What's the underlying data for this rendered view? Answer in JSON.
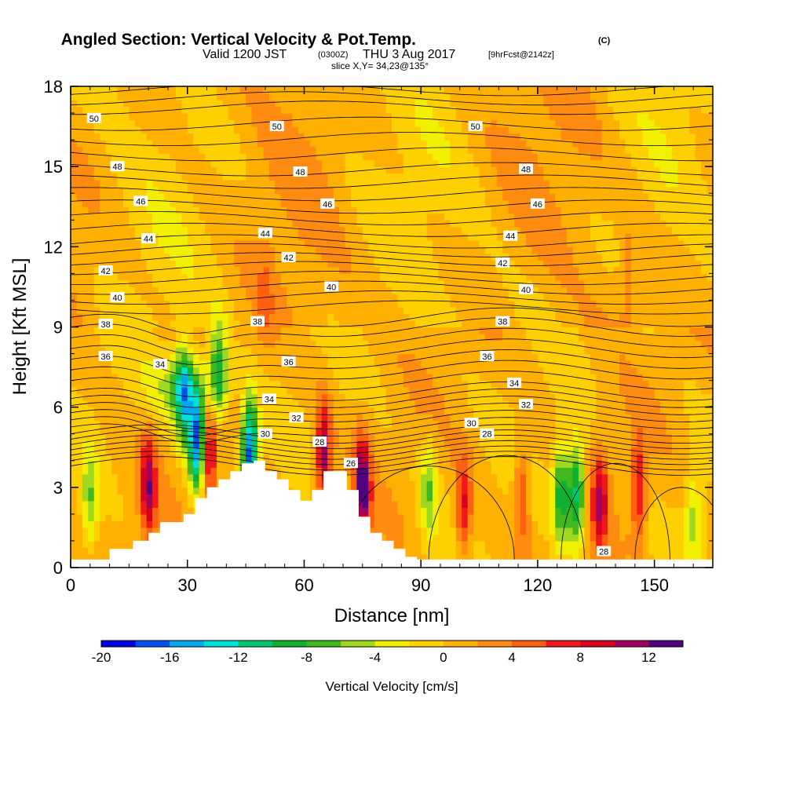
{
  "title": {
    "main": "Angled Section: Vertical Velocity & Pot.Temp.",
    "main_suffix": "(C)",
    "valid_prefix": "Valid 1200 JST",
    "valid_utc": "(0300Z)",
    "valid_date": "THU 3 Aug 2017",
    "forecast": "[9hrFcst@2142z]",
    "slice": "slice X,Y= 34,23@135°"
  },
  "colorbar": {
    "title": "Vertical Velocity [cm/s]",
    "tick_labels": [
      "-20",
      "-16",
      "-12",
      "-8",
      "-4",
      "0",
      "4",
      "8",
      "12"
    ],
    "colors": [
      "#0000dd",
      "#0050f0",
      "#00a8f0",
      "#00e0d8",
      "#00c870",
      "#10b030",
      "#40b820",
      "#a0d820",
      "#f0f000",
      "#ffd000",
      "#ffb000",
      "#ff8c10",
      "#ff6010",
      "#f01818",
      "#d80020",
      "#a00060",
      "#500080"
    ]
  },
  "chart_data": {
    "type": "heatmap",
    "title": "Angled Section: Vertical Velocity & Pot.Temp. (C)",
    "xlabel": "Distance [nm]",
    "ylabel": "Height [Kft MSL]",
    "xlim": [
      0,
      165
    ],
    "ylim": [
      0,
      18
    ],
    "x_ticks": [
      0,
      30,
      60,
      90,
      120,
      150
    ],
    "y_ticks": [
      0,
      3,
      6,
      9,
      12,
      15,
      18
    ],
    "colorbar_range": [
      -20,
      14
    ],
    "colorbar_step": 2,
    "terrain": {
      "x": [
        0,
        10,
        10,
        16,
        16,
        20,
        20,
        23,
        23,
        29,
        29,
        32,
        32,
        35,
        35,
        38,
        38,
        41,
        41,
        44,
        44,
        47,
        47,
        50,
        50,
        53,
        53,
        56,
        56,
        59,
        59,
        62,
        62,
        65,
        65,
        71,
        71,
        74,
        74,
        77,
        77,
        80,
        80,
        83,
        83,
        86,
        86,
        89,
        89,
        165
      ],
      "y": [
        0.3,
        0.3,
        0.7,
        0.7,
        1.0,
        1.0,
        1.3,
        1.3,
        1.7,
        1.7,
        2.0,
        2.0,
        2.6,
        2.6,
        3.0,
        3.0,
        3.3,
        3.3,
        3.6,
        3.6,
        3.9,
        3.9,
        4.0,
        4.0,
        3.6,
        3.6,
        3.3,
        3.3,
        2.9,
        2.9,
        2.5,
        2.5,
        2.9,
        2.9,
        3.6,
        3.6,
        2.9,
        2.9,
        1.9,
        1.9,
        1.3,
        1.3,
        1.0,
        1.0,
        0.7,
        0.7,
        0.4,
        0.4,
        0.3,
        0.3
      ]
    },
    "theta_contours": [
      {
        "label": "50",
        "level_kft": 16.6
      },
      {
        "label": "48",
        "level_kft": 14.9
      },
      {
        "label": "46",
        "level_kft": 13.5
      },
      {
        "label": "44",
        "level_kft": 12.2
      },
      {
        "label": "42",
        "level_kft": 11.2
      },
      {
        "label": "40",
        "level_kft": 10.1
      },
      {
        "label": "38",
        "level_kft": 9.0
      },
      {
        "label": "36",
        "level_kft": 7.8
      },
      {
        "label": "34",
        "level_kft": 6.6
      },
      {
        "label": "32",
        "level_kft": 5.8
      },
      {
        "label": "30",
        "level_kft": 5.0
      },
      {
        "label": "28",
        "level_kft": 4.4
      },
      {
        "label": "26",
        "level_kft": 3.8
      }
    ],
    "contour_labels": [
      {
        "text": "50",
        "x": 6,
        "y": 16.8
      },
      {
        "text": "50",
        "x": 53,
        "y": 16.5
      },
      {
        "text": "50",
        "x": 104,
        "y": 16.5
      },
      {
        "text": "48",
        "x": 12,
        "y": 15.0
      },
      {
        "text": "48",
        "x": 59,
        "y": 14.8
      },
      {
        "text": "48",
        "x": 117,
        "y": 14.9
      },
      {
        "text": "46",
        "x": 18,
        "y": 13.7
      },
      {
        "text": "46",
        "x": 66,
        "y": 13.6
      },
      {
        "text": "46",
        "x": 120,
        "y": 13.6
      },
      {
        "text": "44",
        "x": 20,
        "y": 12.3
      },
      {
        "text": "44",
        "x": 50,
        "y": 12.5
      },
      {
        "text": "44",
        "x": 113,
        "y": 12.4
      },
      {
        "text": "42",
        "x": 9,
        "y": 11.1
      },
      {
        "text": "42",
        "x": 56,
        "y": 11.6
      },
      {
        "text": "42",
        "x": 111,
        "y": 11.4
      },
      {
        "text": "40",
        "x": 12,
        "y": 10.1
      },
      {
        "text": "40",
        "x": 67,
        "y": 10.5
      },
      {
        "text": "40",
        "x": 117,
        "y": 10.4
      },
      {
        "text": "38",
        "x": 9,
        "y": 9.1
      },
      {
        "text": "38",
        "x": 48,
        "y": 9.2
      },
      {
        "text": "38",
        "x": 111,
        "y": 9.2
      },
      {
        "text": "36",
        "x": 9,
        "y": 7.9
      },
      {
        "text": "36",
        "x": 56,
        "y": 7.7
      },
      {
        "text": "36",
        "x": 107,
        "y": 7.9
      },
      {
        "text": "34",
        "x": 23,
        "y": 7.6
      },
      {
        "text": "34",
        "x": 51,
        "y": 6.3
      },
      {
        "text": "34",
        "x": 114,
        "y": 6.9
      },
      {
        "text": "32",
        "x": 58,
        "y": 5.6
      },
      {
        "text": "32",
        "x": 117,
        "y": 6.1
      },
      {
        "text": "30",
        "x": 50,
        "y": 5.0
      },
      {
        "text": "30",
        "x": 103,
        "y": 5.4
      },
      {
        "text": "28",
        "x": 64,
        "y": 4.7
      },
      {
        "text": "28",
        "x": 107,
        "y": 5.0
      },
      {
        "text": "28",
        "x": 137,
        "y": 0.6
      },
      {
        "text": "26",
        "x": 72,
        "y": 3.9
      }
    ],
    "features": [
      {
        "kind": "updraft",
        "x_center": 20,
        "z_center": 3.0,
        "peak_cms": 10
      },
      {
        "kind": "downdraft",
        "x_center": 29,
        "z_center": 6.5,
        "peak_cms": -11
      },
      {
        "kind": "downdraft",
        "x_center": 32.5,
        "z_center": 4.8,
        "peak_cms": -17
      },
      {
        "kind": "updraft",
        "x_center": 35.5,
        "z_center": 4.2,
        "peak_cms": 10
      },
      {
        "kind": "downdraft",
        "x_center": 38,
        "z_center": 7.3,
        "peak_cms": -10
      },
      {
        "kind": "downdraft",
        "x_center": 46,
        "z_center": 4.3,
        "peak_cms": -18
      },
      {
        "kind": "updraft",
        "x_center": 65,
        "z_center": 4.3,
        "peak_cms": 11
      },
      {
        "kind": "updraft",
        "x_center": 75,
        "z_center": 3.0,
        "peak_cms": 13
      },
      {
        "kind": "downdraft",
        "x_center": 92,
        "z_center": 2.9,
        "peak_cms": -6
      },
      {
        "kind": "updraft",
        "x_center": 101,
        "z_center": 2.2,
        "peak_cms": 8
      },
      {
        "kind": "updraft",
        "x_center": 116,
        "z_center": 2.8,
        "peak_cms": 6
      },
      {
        "kind": "downdraft",
        "x_center": 126,
        "z_center": 2.8,
        "peak_cms": -10
      },
      {
        "kind": "downdraft",
        "x_center": 130,
        "z_center": 2.8,
        "peak_cms": -12
      },
      {
        "kind": "updraft",
        "x_center": 136,
        "z_center": 2.5,
        "peak_cms": 9
      },
      {
        "kind": "updraft",
        "x_center": 146,
        "z_center": 3.0,
        "peak_cms": 8
      },
      {
        "kind": "downdraft",
        "x_center": 160,
        "z_center": 2.0,
        "peak_cms": -5
      },
      {
        "kind": "downdraft",
        "x_center": 5,
        "z_center": 2.4,
        "peak_cms": -6
      },
      {
        "kind": "updraft",
        "x_center": 50,
        "z_center": 10.0,
        "peak_cms": 3
      },
      {
        "kind": "updraft",
        "x_center": 143,
        "z_center": 11.0,
        "peak_cms": 3
      }
    ]
  }
}
